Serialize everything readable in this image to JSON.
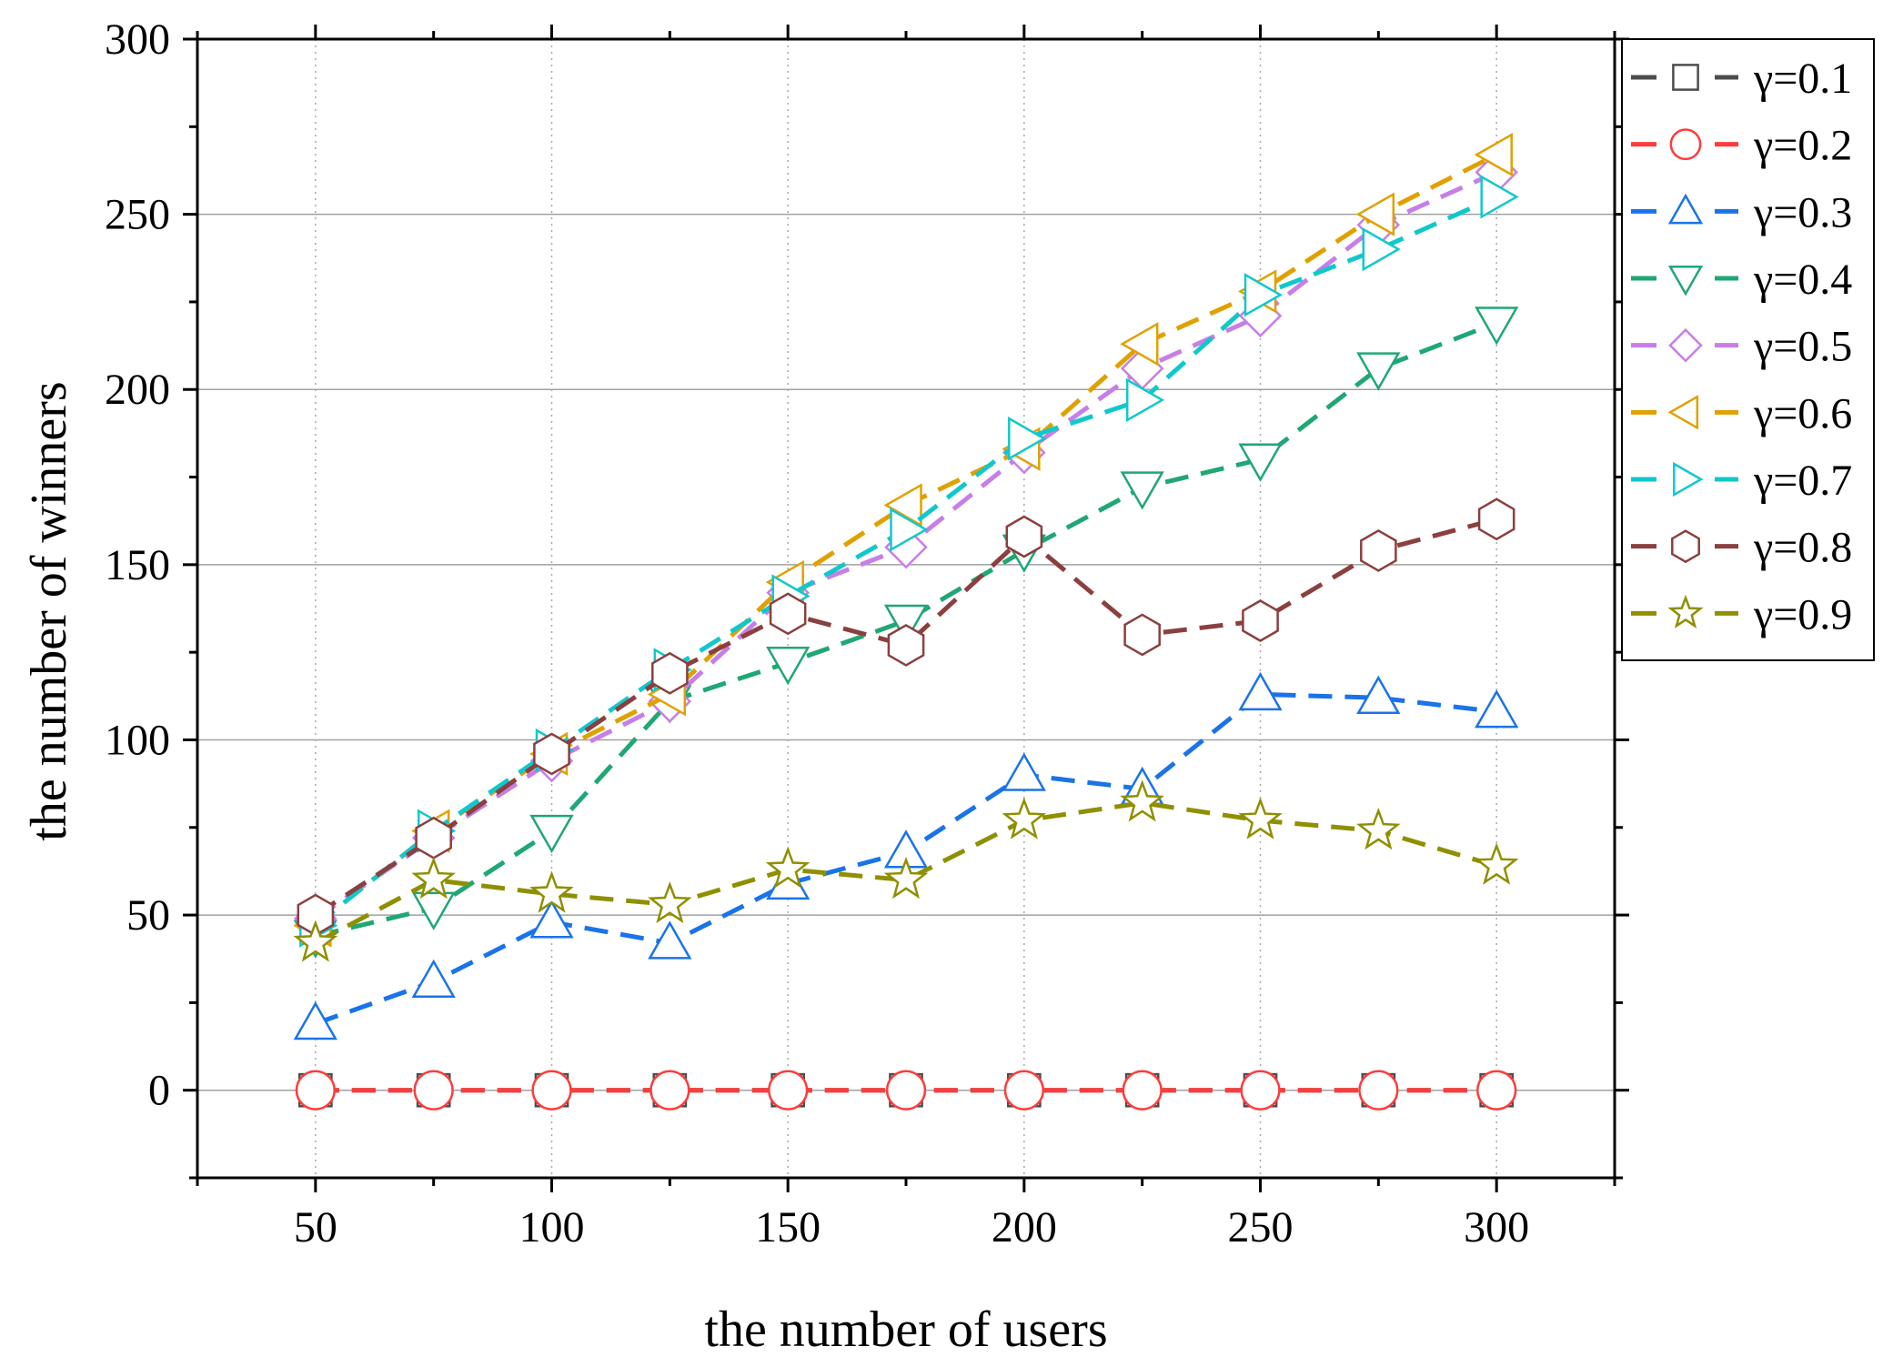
{
  "chart_data": {
    "type": "line",
    "title": "",
    "xlabel": "the number of users",
    "ylabel": "the number of winners",
    "xlim": [
      25,
      325
    ],
    "ylim": [
      -25,
      300
    ],
    "x_ticks": [
      50,
      100,
      150,
      200,
      250,
      300
    ],
    "y_ticks": [
      0,
      50,
      100,
      150,
      200,
      250,
      300
    ],
    "grid": "horizontal gridlines and vertical dotted lines at major x ticks",
    "legend_position": "outside right, top",
    "x": [
      50,
      75,
      100,
      125,
      150,
      175,
      200,
      225,
      250,
      275,
      300
    ],
    "series": [
      {
        "name": "γ=0.1",
        "color": "#4d4d4d",
        "marker": "square",
        "values": [
          0,
          0,
          0,
          0,
          0,
          0,
          0,
          0,
          0,
          0,
          0
        ]
      },
      {
        "name": "γ=0.2",
        "color": "#ff3b3b",
        "marker": "circle",
        "values": [
          0,
          0,
          0,
          0,
          0,
          0,
          0,
          0,
          0,
          0,
          0
        ]
      },
      {
        "name": "γ=0.3",
        "color": "#1a73e8",
        "marker": "triangle-up",
        "values": [
          19,
          31,
          48,
          42,
          59,
          68,
          90,
          86,
          113,
          112,
          108
        ]
      },
      {
        "name": "γ=0.4",
        "color": "#1fa774",
        "marker": "triangle-down",
        "values": [
          44,
          52,
          74,
          111,
          122,
          134,
          154,
          172,
          180,
          206,
          219
        ]
      },
      {
        "name": "γ=0.5",
        "color": "#c77ee6",
        "marker": "diamond",
        "values": [
          49,
          72,
          94,
          111,
          142,
          155,
          182,
          206,
          221,
          247,
          262
        ]
      },
      {
        "name": "γ=0.6",
        "color": "#e0a100",
        "marker": "triangle-left",
        "values": [
          47,
          74,
          96,
          113,
          145,
          167,
          183,
          213,
          228,
          250,
          267
        ]
      },
      {
        "name": "γ=0.7",
        "color": "#10c8cc",
        "marker": "triangle-right",
        "values": [
          47,
          74,
          97,
          120,
          141,
          160,
          186,
          197,
          227,
          240,
          255
        ]
      },
      {
        "name": "γ=0.8",
        "color": "#8b3f3f",
        "marker": "hexagon",
        "values": [
          50,
          72,
          96,
          119,
          136,
          127,
          158,
          130,
          134,
          154,
          163
        ]
      },
      {
        "name": "γ=0.9",
        "color": "#8f8f00",
        "marker": "star",
        "values": [
          42,
          60,
          56,
          53,
          63,
          60,
          77,
          82,
          77,
          74,
          64
        ]
      }
    ]
  }
}
